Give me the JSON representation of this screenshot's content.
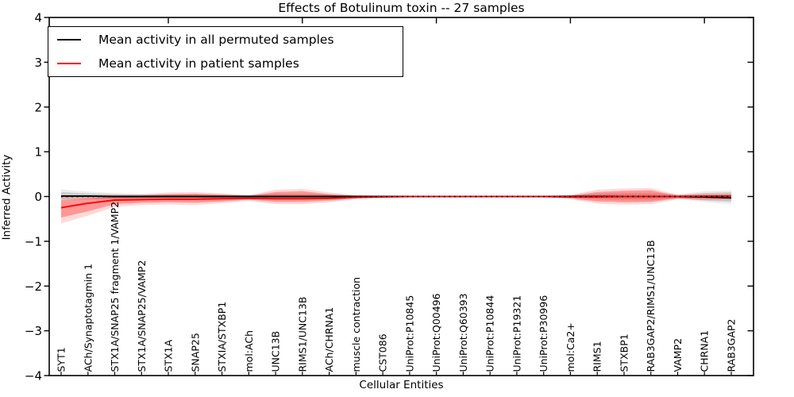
{
  "title": "Effects of Botulinum toxin -- 27 samples",
  "legend": {
    "position": "upper left",
    "entries": [
      {
        "label": "Mean activity in all permuted samples",
        "color": "#000000"
      },
      {
        "label": "Mean activity in patient samples",
        "color": "#ff0000"
      }
    ]
  },
  "chart_data": {
    "type": "line",
    "title": "Effects of Botulinum toxin -- 27 samples",
    "xlabel": "Cellular Entities",
    "ylabel": "Inferred Activity",
    "ylim": [
      -4,
      4
    ],
    "yticks": [
      -4,
      -3,
      -2,
      -1,
      0,
      1,
      2,
      3,
      4
    ],
    "grid": false,
    "legend_position": "upper left",
    "zero_line": {
      "y": 0,
      "style": "dotted",
      "color": "#000000"
    },
    "top_tick_indices": [
      4,
      9,
      14,
      19,
      24
    ],
    "categories": [
      "SYT1",
      "ACh/Synaptotagmin 1",
      "STX1A/SNAP25 fragment 1/VAMP2",
      "STX1A/SNAP25/VAMP2",
      "STX1A",
      "SNAP25",
      "STXIA/STXBP1",
      "mol:ACh",
      "UNC13B",
      "RIMS1/UNC13B",
      "ACh/CHRNA1",
      "muscle contraction",
      "CST086",
      "UniProt:P10845",
      "UniProt:Q00496",
      "UniProt:Q60393",
      "UniProt:P10844",
      "UniProt:P19321",
      "UniProt:P30996",
      "mol:Ca2+",
      "RIMS1",
      "STXBP1",
      "RAB3GAP2/RIMS1/UNC13B",
      "VAMP2",
      "CHRNA1",
      "RAB3GAP2"
    ],
    "series": [
      {
        "name": "Mean activity in all permuted samples",
        "color": "#000000",
        "band_fill_inner": "rgba(0,0,0,0.13)",
        "band_fill_outer": "rgba(0,0,0,0.07)",
        "values": [
          0.01,
          0.01,
          0,
          0,
          0,
          0,
          0,
          0,
          0,
          0,
          0,
          0,
          0,
          0,
          0,
          0,
          0,
          0,
          0,
          0,
          0,
          0,
          0,
          0,
          -0.01,
          -0.03
        ],
        "band_inner_upper": [
          0.1,
          0.07,
          0.05,
          0.04,
          0.04,
          0.04,
          0.03,
          0.03,
          0.05,
          0.05,
          0.04,
          0.02,
          0.01,
          0.01,
          0.01,
          0.01,
          0.01,
          0.01,
          0.01,
          0.02,
          0.05,
          0.06,
          0.06,
          0.03,
          0.08,
          0.1
        ],
        "band_inner_lower": [
          -0.06,
          -0.05,
          -0.05,
          -0.04,
          -0.04,
          -0.04,
          -0.03,
          -0.03,
          -0.05,
          -0.05,
          -0.04,
          -0.02,
          -0.01,
          -0.01,
          -0.01,
          -0.01,
          -0.01,
          -0.01,
          -0.01,
          -0.02,
          -0.05,
          -0.06,
          -0.06,
          -0.03,
          -0.09,
          -0.12
        ],
        "band_outer_upper": [
          0.16,
          0.11,
          0.08,
          0.06,
          0.06,
          0.06,
          0.05,
          0.04,
          0.07,
          0.07,
          0.06,
          0.03,
          0.02,
          0.01,
          0.01,
          0.01,
          0.01,
          0.01,
          0.02,
          0.03,
          0.07,
          0.09,
          0.09,
          0.05,
          0.12,
          0.14
        ],
        "band_outer_lower": [
          -0.08,
          -0.07,
          -0.06,
          -0.06,
          -0.06,
          -0.06,
          -0.05,
          -0.04,
          -0.07,
          -0.07,
          -0.06,
          -0.03,
          -0.02,
          -0.01,
          -0.01,
          -0.01,
          -0.01,
          -0.01,
          -0.02,
          -0.03,
          -0.07,
          -0.09,
          -0.09,
          -0.05,
          -0.13,
          -0.17
        ]
      },
      {
        "name": "Mean activity in patient samples",
        "color": "#ff0000",
        "band_fill_inner": "rgba(255,0,0,0.30)",
        "band_fill_outer": "rgba(255,0,0,0.15)",
        "values": [
          -0.25,
          -0.15,
          -0.08,
          -0.07,
          -0.06,
          -0.06,
          -0.05,
          -0.04,
          -0.05,
          -0.05,
          -0.04,
          -0.02,
          -0.01,
          0,
          0,
          0,
          0,
          0,
          0,
          -0.01,
          -0.01,
          0,
          0,
          0,
          0.01,
          0.01
        ],
        "band_inner_upper": [
          -0.08,
          -0.04,
          0.0,
          0.02,
          0.05,
          0.06,
          0.04,
          0.01,
          0.1,
          0.12,
          0.05,
          0.01,
          0,
          0,
          0,
          0,
          0,
          0,
          0,
          0.02,
          0.1,
          0.13,
          0.14,
          0.02,
          0.03,
          0.04
        ],
        "band_inner_lower": [
          -0.47,
          -0.33,
          -0.17,
          -0.14,
          -0.13,
          -0.14,
          -0.11,
          -0.07,
          -0.12,
          -0.12,
          -0.09,
          -0.04,
          -0.01,
          -0.01,
          -0.01,
          -0.01,
          -0.01,
          -0.01,
          -0.01,
          -0.04,
          -0.11,
          -0.13,
          -0.12,
          -0.04,
          -0.05,
          -0.05
        ],
        "band_outer_upper": [
          -0.02,
          0.01,
          0.04,
          0.05,
          0.09,
          0.1,
          0.07,
          0.03,
          0.15,
          0.17,
          0.09,
          0.03,
          0.01,
          0.01,
          0.01,
          0.01,
          0.01,
          0.01,
          0.01,
          0.04,
          0.15,
          0.18,
          0.19,
          0.04,
          0.06,
          0.06
        ],
        "band_outer_lower": [
          -0.6,
          -0.43,
          -0.23,
          -0.19,
          -0.18,
          -0.19,
          -0.15,
          -0.1,
          -0.17,
          -0.17,
          -0.13,
          -0.06,
          -0.02,
          -0.01,
          -0.01,
          -0.01,
          -0.01,
          -0.01,
          -0.02,
          -0.06,
          -0.16,
          -0.18,
          -0.17,
          -0.06,
          -0.08,
          -0.08
        ]
      }
    ]
  }
}
